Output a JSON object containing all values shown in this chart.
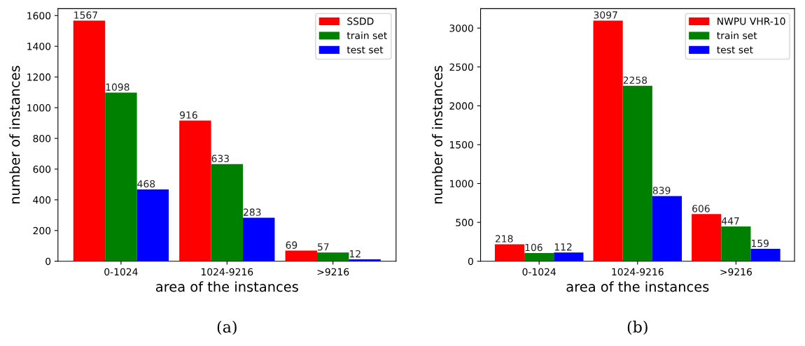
{
  "chart_data": [
    {
      "type": "bar",
      "xlabel": "area of the instances",
      "ylabel": "number of instances",
      "categories": [
        "0-1024",
        "1024-9216",
        ">9216"
      ],
      "series": [
        {
          "name": "SSDD",
          "color": "#ff0000",
          "values": [
            1567,
            916,
            69
          ]
        },
        {
          "name": "train set",
          "color": "#008000",
          "values": [
            1098,
            633,
            57
          ]
        },
        {
          "name": "test set",
          "color": "#0000ff",
          "values": [
            468,
            283,
            12
          ]
        }
      ],
      "ylim": [
        0,
        1645
      ],
      "yticks": [
        0,
        200,
        400,
        600,
        800,
        1000,
        1200,
        1400,
        1600
      ],
      "data_labels": true,
      "legend": "top right",
      "grid": false,
      "annotations": [
        "(a)"
      ]
    },
    {
      "type": "bar",
      "xlabel": "area of the instances",
      "ylabel": "number of instances",
      "categories": [
        "0-1024",
        "1024-9216",
        ">9216"
      ],
      "series": [
        {
          "name": "NWPU VHR-10",
          "color": "#ff0000",
          "values": [
            218,
            3097,
            606
          ]
        },
        {
          "name": "train set",
          "color": "#008000",
          "values": [
            106,
            2258,
            447
          ]
        },
        {
          "name": "test set",
          "color": "#0000ff",
          "values": [
            112,
            839,
            159
          ]
        }
      ],
      "ylim": [
        0,
        3250
      ],
      "yticks": [
        0,
        500,
        1000,
        1500,
        2000,
        2500,
        3000
      ],
      "data_labels": true,
      "legend": "top right",
      "grid": false,
      "annotations": [
        "(b)"
      ]
    }
  ]
}
